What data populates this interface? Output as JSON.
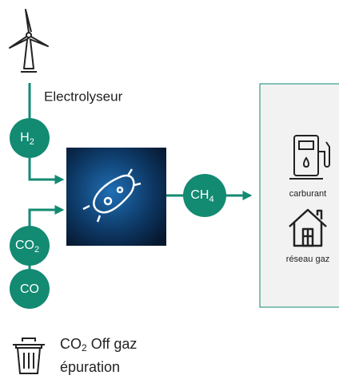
{
  "labels": {
    "electrolyser": "Electrolyseur",
    "fuel": "carburant",
    "grid": "réseau gaz",
    "offgas": {
      "main": "CO",
      "subscript": "2",
      "rest": " Off gaz"
    },
    "purification": "épuration"
  },
  "nodes": [
    {
      "label": "H",
      "subscript": "2"
    },
    {
      "label": "CH",
      "subscript": "4"
    },
    {
      "label": "CO",
      "subscript": "2"
    },
    {
      "label": "CO"
    }
  ]
}
